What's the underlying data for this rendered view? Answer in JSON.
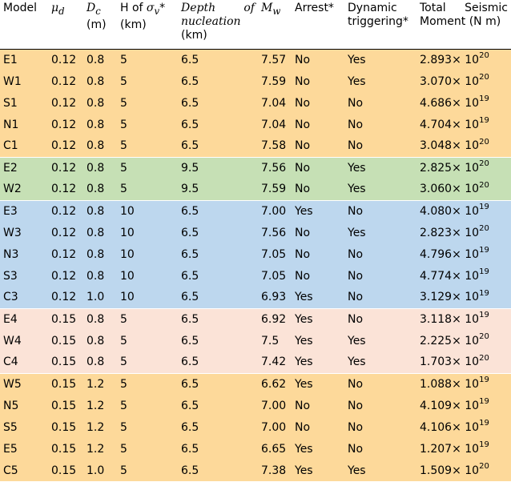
{
  "headers": {
    "model": "Model",
    "mu_d": "μ",
    "mu_d_sub": "d",
    "d_c": "D",
    "d_c_sub": "c",
    "d_c_unit": "(m)",
    "h_sigma_pre": "H of ",
    "h_sigma_sym": "σ",
    "h_sigma_sub": "v",
    "h_sigma_post": "*",
    "h_sigma_unit": "(km)",
    "depth_line1": "Depth of",
    "depth_line2": "nucleation",
    "depth_unit": "(km)",
    "mw": "M",
    "mw_sub": "w",
    "arrest": "Arrest*",
    "dynamic_line1": "Dynamic",
    "dynamic_line2": "triggering*",
    "moment_line1": "Total Seismic",
    "moment_line2": "Moment (N m)"
  },
  "colors": {
    "yellow": "#fdd99a",
    "green": "#c6e0b5",
    "blue": "#bdd7ee",
    "pink": "#fbe3d7"
  },
  "rows": [
    {
      "model": "E1",
      "mu": "0.12",
      "dc": "0.8",
      "h": "5",
      "depth": "6.5",
      "mw": "7.57",
      "arrest": "No",
      "dyn": "Yes",
      "mant": "2.893×",
      "exp": "20",
      "color": "yellow"
    },
    {
      "model": "W1",
      "mu": "0.12",
      "dc": "0.8",
      "h": "5",
      "depth": "6.5",
      "mw": "7.59",
      "arrest": "No",
      "dyn": "Yes",
      "mant": "3.070×",
      "exp": "20",
      "color": "yellow"
    },
    {
      "model": "S1",
      "mu": "0.12",
      "dc": "0.8",
      "h": "5",
      "depth": "6.5",
      "mw": "7.04",
      "arrest": "No",
      "dyn": "No",
      "mant": "4.686×",
      "exp": "19",
      "color": "yellow"
    },
    {
      "model": "N1",
      "mu": "0.12",
      "dc": "0.8",
      "h": "5",
      "depth": "6.5",
      "mw": "7.04",
      "arrest": "No",
      "dyn": "No",
      "mant": "4.704×",
      "exp": "19",
      "color": "yellow"
    },
    {
      "model": "C1",
      "mu": "0.12",
      "dc": "0.8",
      "h": "5",
      "depth": "6.5",
      "mw": "7.58",
      "arrest": "No",
      "dyn": "No",
      "mant": "3.048×",
      "exp": "20",
      "color": "yellow",
      "end": true
    },
    {
      "model": "E2",
      "mu": "0.12",
      "dc": "0.8",
      "h": "5",
      "depth": "9.5",
      "mw": "7.56",
      "arrest": "No",
      "dyn": "Yes",
      "mant": "2.825×",
      "exp": "20",
      "color": "green"
    },
    {
      "model": "W2",
      "mu": "0.12",
      "dc": "0.8",
      "h": "5",
      "depth": "9.5",
      "mw": "7.59",
      "arrest": "No",
      "dyn": "Yes",
      "mant": "3.060×",
      "exp": "20",
      "color": "green",
      "end": true
    },
    {
      "model": "E3",
      "mu": "0.12",
      "dc": "0.8",
      "h": "10",
      "depth": "6.5",
      "mw": "7.00",
      "arrest": "Yes",
      "dyn": "No",
      "mant": "4.080×",
      "exp": "19",
      "color": "blue"
    },
    {
      "model": "W3",
      "mu": "0.12",
      "dc": "0.8",
      "h": "10",
      "depth": "6.5",
      "mw": "7.56",
      "arrest": "No",
      "dyn": "Yes",
      "mant": "2.823×",
      "exp": "20",
      "color": "blue"
    },
    {
      "model": "N3",
      "mu": "0.12",
      "dc": "0.8",
      "h": "10",
      "depth": "6.5",
      "mw": "7.05",
      "arrest": "No",
      "dyn": "No",
      "mant": "4.796×",
      "exp": "19",
      "color": "blue"
    },
    {
      "model": "S3",
      "mu": "0.12",
      "dc": "0.8",
      "h": "10",
      "depth": "6.5",
      "mw": "7.05",
      "arrest": "No",
      "dyn": "No",
      "mant": "4.774×",
      "exp": "19",
      "color": "blue"
    },
    {
      "model": "C3",
      "mu": "0.12",
      "dc": "1.0",
      "h": "10",
      "depth": "6.5",
      "mw": "6.93",
      "arrest": "Yes",
      "dyn": "No",
      "mant": "3.129×",
      "exp": "19",
      "color": "blue",
      "end": true
    },
    {
      "model": "E4",
      "mu": "0.15",
      "dc": "0.8",
      "h": "5",
      "depth": "6.5",
      "mw": "6.92",
      "arrest": "Yes",
      "dyn": "No",
      "mant": "3.118×",
      "exp": "19",
      "color": "pink"
    },
    {
      "model": "W4",
      "mu": "0.15",
      "dc": "0.8",
      "h": "5",
      "depth": "6.5",
      "mw": "7.5",
      "arrest": "Yes",
      "dyn": "Yes",
      "mant": "2.225×",
      "exp": "20",
      "color": "pink"
    },
    {
      "model": "C4",
      "mu": "0.15",
      "dc": "0.8",
      "h": "5",
      "depth": "6.5",
      "mw": "7.42",
      "arrest": "Yes",
      "dyn": "Yes",
      "mant": "1.703×",
      "exp": "20",
      "color": "pink",
      "end": true
    },
    {
      "model": "W5",
      "mu": "0.15",
      "dc": "1.2",
      "h": "5",
      "depth": "6.5",
      "mw": "6.62",
      "arrest": "Yes",
      "dyn": "No",
      "mant": "1.088×",
      "exp": "19",
      "color": "yellow"
    },
    {
      "model": "N5",
      "mu": "0.15",
      "dc": "1.2",
      "h": "5",
      "depth": "6.5",
      "mw": "7.00",
      "arrest": "No",
      "dyn": "No",
      "mant": "4.109×",
      "exp": "19",
      "color": "yellow"
    },
    {
      "model": "S5",
      "mu": "0.15",
      "dc": "1.2",
      "h": "5",
      "depth": "6.5",
      "mw": "7.00",
      "arrest": "No",
      "dyn": "No",
      "mant": "4.106×",
      "exp": "19",
      "color": "yellow"
    },
    {
      "model": "E5",
      "mu": "0.15",
      "dc": "1.2",
      "h": "5",
      "depth": "6.5",
      "mw": "6.65",
      "arrest": "Yes",
      "dyn": "No",
      "mant": "1.207×",
      "exp": "19",
      "color": "yellow"
    },
    {
      "model": "C5",
      "mu": "0.15",
      "dc": "1.0",
      "h": "5",
      "depth": "6.5",
      "mw": "7.38",
      "arrest": "Yes",
      "dyn": "Yes",
      "mant": "1.509×",
      "exp": "20",
      "color": "yellow"
    }
  ]
}
